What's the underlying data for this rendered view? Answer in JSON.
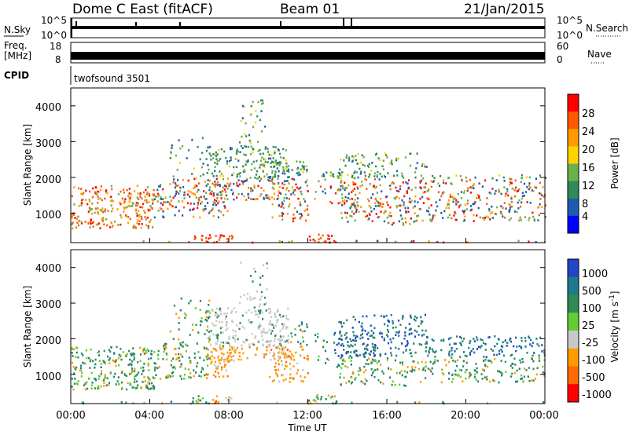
{
  "header": {
    "title": "Dome C East (fitACF)",
    "beam": "Beam 01",
    "date": "21/Jan/2015"
  },
  "nsky": {
    "label": "N.Sky",
    "right_label": "N.Search",
    "tick_top": "10^5",
    "tick_bottom": "10^0",
    "rtick_top": "10^5",
    "rtick_bottom": "10^0"
  },
  "freq": {
    "label_line1": "Freq.",
    "label_line2": "[MHz]",
    "tick_top": "18",
    "tick_bottom": "8",
    "right_label": "Nave",
    "rtick_top": "60",
    "rtick_bottom": "0"
  },
  "cpid": {
    "label": "CPID",
    "program": "twofsound 3501"
  },
  "x_axis": {
    "label": "Time UT",
    "ticks": [
      "00:00",
      "04:00",
      "08:00",
      "12:00",
      "16:00",
      "20:00",
      "00:00"
    ]
  },
  "power_panel": {
    "ylabel": "Slant Range [km]",
    "yticks": [
      "4000",
      "3000",
      "2000",
      "1000"
    ],
    "colorbar_label": "Power [dB]",
    "colorbar_ticks": [
      "28",
      "24",
      "20",
      "16",
      "12",
      "8",
      "4"
    ],
    "colors": [
      "#ff0000",
      "#ff5a00",
      "#ff9a00",
      "#ffd200",
      "#6ab04c",
      "#2e8b57",
      "#1e5bb0",
      "#0000ff"
    ]
  },
  "velocity_panel": {
    "ylabel": "Slant Range [km]",
    "yticks": [
      "4000",
      "3000",
      "2000",
      "1000"
    ],
    "colorbar_label": "Velocity [m s",
    "colorbar_label_sup": "-1",
    "colorbar_label_end": "]",
    "colorbar_ticks": [
      "1000",
      "500",
      "100",
      "25",
      "-25",
      "-100",
      "-500",
      "-1000"
    ],
    "colors": [
      "#2246c8",
      "#1c7a8c",
      "#2e8b57",
      "#66cc33",
      "#c8c8c8",
      "#ff9a00",
      "#ff6a00",
      "#ff0000"
    ]
  },
  "chart_data": {
    "type": "heatmap",
    "x_range": [
      "00:00",
      "00:00"
    ],
    "y_range_km": [
      180,
      4500
    ],
    "panels": [
      "Power [dB]",
      "Velocity [m s-1]"
    ]
  }
}
